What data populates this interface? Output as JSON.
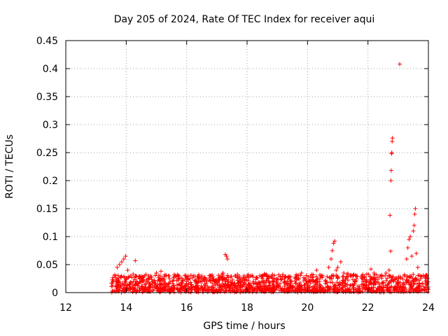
{
  "chart_data": {
    "type": "scatter",
    "title": "Day 205 of 2024, Rate Of TEC Index for receiver aqui",
    "xlabel": "GPS time / hours",
    "ylabel": "ROTI / TECUs",
    "xlim": [
      12,
      24
    ],
    "ylim": [
      0,
      0.45
    ],
    "xticks": [
      12,
      14,
      16,
      18,
      20,
      22,
      24
    ],
    "yticks": [
      0,
      0.05,
      0.1,
      0.15,
      0.2,
      0.25,
      0.3,
      0.35,
      0.4,
      0.45
    ],
    "xtick_labels": [
      "12",
      "14",
      "16",
      "18",
      "20",
      "22",
      "24"
    ],
    "ytick_labels": [
      "0",
      "0.05",
      "0.1",
      "0.15",
      "0.2",
      "0.25",
      "0.3",
      "0.35",
      "0.4",
      "0.45"
    ],
    "grid": true,
    "marker": "+",
    "marker_color": "#ff0000",
    "points": [
      [
        13.55,
        0.012
      ],
      [
        13.62,
        0.03
      ],
      [
        13.7,
        0.045
      ],
      [
        13.78,
        0.05
      ],
      [
        13.85,
        0.055
      ],
      [
        13.92,
        0.06
      ],
      [
        13.98,
        0.065
      ],
      [
        14.05,
        0.04
      ],
      [
        14.15,
        0.03
      ],
      [
        14.3,
        0.057
      ],
      [
        14.45,
        0.025
      ],
      [
        14.6,
        0.03
      ],
      [
        14.8,
        0.03
      ],
      [
        15.0,
        0.035
      ],
      [
        15.15,
        0.038
      ],
      [
        15.4,
        0.03
      ],
      [
        15.7,
        0.032
      ],
      [
        16.0,
        0.028
      ],
      [
        16.4,
        0.032
      ],
      [
        16.8,
        0.03
      ],
      [
        17.2,
        0.035
      ],
      [
        17.28,
        0.068
      ],
      [
        17.32,
        0.065
      ],
      [
        17.35,
        0.06
      ],
      [
        17.6,
        0.03
      ],
      [
        17.9,
        0.03
      ],
      [
        18.2,
        0.028
      ],
      [
        18.6,
        0.032
      ],
      [
        19.0,
        0.025
      ],
      [
        19.4,
        0.028
      ],
      [
        19.8,
        0.035
      ],
      [
        20.1,
        0.03
      ],
      [
        20.3,
        0.04
      ],
      [
        20.5,
        0.03
      ],
      [
        20.7,
        0.045
      ],
      [
        20.78,
        0.06
      ],
      [
        20.82,
        0.075
      ],
      [
        20.86,
        0.088
      ],
      [
        20.9,
        0.092
      ],
      [
        20.95,
        0.04
      ],
      [
        21.0,
        0.045
      ],
      [
        21.1,
        0.055
      ],
      [
        21.2,
        0.035
      ],
      [
        21.5,
        0.03
      ],
      [
        21.8,
        0.03
      ],
      [
        22.1,
        0.042
      ],
      [
        22.2,
        0.035
      ],
      [
        22.4,
        0.03
      ],
      [
        22.6,
        0.035
      ],
      [
        22.7,
        0.04
      ],
      [
        22.73,
        0.138
      ],
      [
        22.75,
        0.074
      ],
      [
        22.76,
        0.2
      ],
      [
        22.77,
        0.218
      ],
      [
        22.78,
        0.248
      ],
      [
        22.79,
        0.25
      ],
      [
        22.8,
        0.27
      ],
      [
        22.81,
        0.276
      ],
      [
        23.05,
        0.408
      ],
      [
        23.2,
        0.03
      ],
      [
        23.28,
        0.06
      ],
      [
        23.32,
        0.08
      ],
      [
        23.36,
        0.095
      ],
      [
        23.4,
        0.1
      ],
      [
        23.45,
        0.065
      ],
      [
        23.5,
        0.11
      ],
      [
        23.53,
        0.12
      ],
      [
        23.55,
        0.14
      ],
      [
        23.57,
        0.15
      ],
      [
        23.6,
        0.07
      ],
      [
        23.65,
        0.045
      ],
      [
        23.75,
        0.03
      ],
      [
        23.9,
        0.02
      ],
      [
        24.0,
        0.01
      ]
    ]
  }
}
